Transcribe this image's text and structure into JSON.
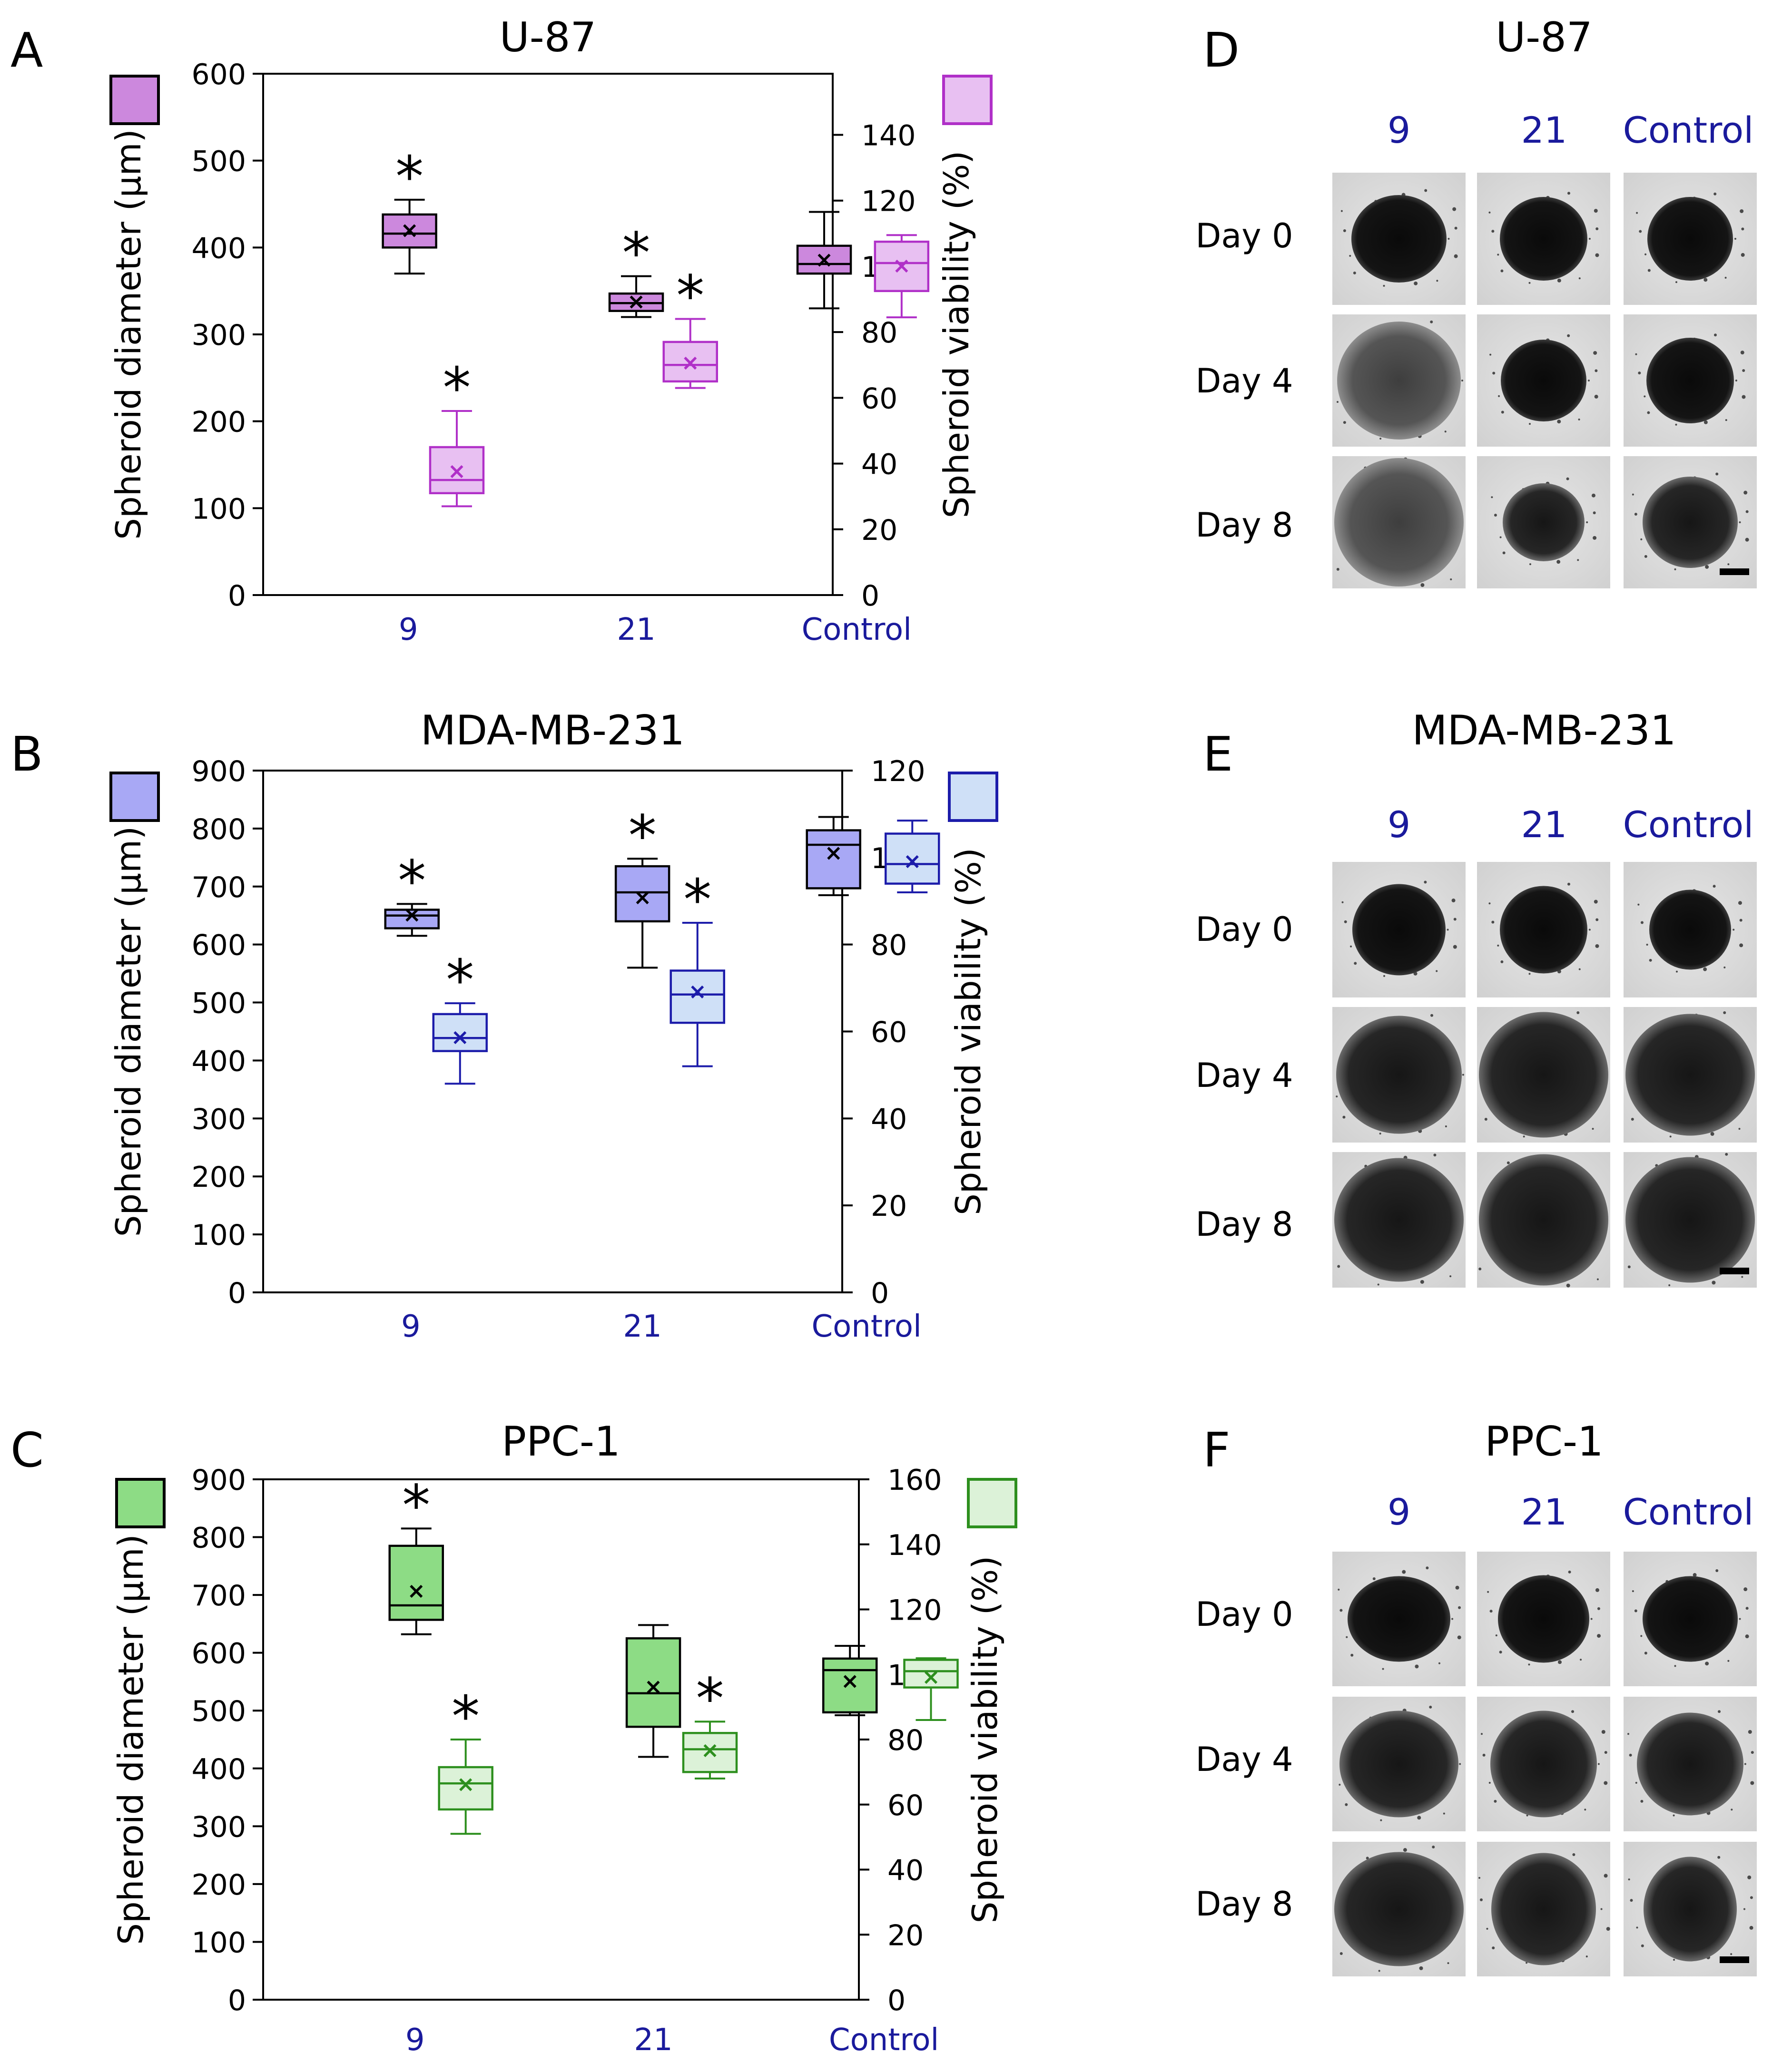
{
  "figure": {
    "panel_letters": [
      "A",
      "B",
      "C",
      "D",
      "E",
      "F"
    ],
    "axis_titles": {
      "left": "Spheroid diameter (µm)",
      "right": "Spheroid viability (%)"
    },
    "category_color": "#1a1a9c"
  },
  "chart_data": [
    {
      "type": "box",
      "panel": "A",
      "title": "U-87",
      "categories": [
        "9",
        "21",
        "Control"
      ],
      "ylabel": "Spheroid diameter (µm)",
      "y2label": "Spheroid viability (%)",
      "ylim": [
        0,
        600
      ],
      "yticks": [
        0,
        100,
        200,
        300,
        400,
        500,
        600
      ],
      "y2lim": [
        0,
        158.6
      ],
      "y2ticks": [
        0,
        20,
        40,
        60,
        80,
        100,
        120,
        140
      ],
      "colors": {
        "diameter_fill": "#cc88dd",
        "viability_fill": "#e8c0f2",
        "diameter_line": "#000000",
        "viability_line": "#b030c8"
      },
      "series": [
        {
          "name": "Spheroid diameter",
          "axis": "left",
          "boxes": [
            {
              "category": "9",
              "min": 370,
              "q1": 400,
              "median": 416,
              "q3": 438,
              "max": 455,
              "mean": 419,
              "sig": true
            },
            {
              "category": "21",
              "min": 320,
              "q1": 327,
              "median": 336,
              "q3": 347,
              "max": 367,
              "mean": 337,
              "sig": true
            },
            {
              "category": "Control",
              "min": 330,
              "q1": 370,
              "median": 381,
              "q3": 402,
              "max": 441,
              "mean": 385,
              "sig": false
            }
          ]
        },
        {
          "name": "Spheroid viability",
          "axis": "right",
          "boxes": [
            {
              "category": "9",
              "min": 27,
              "q1": 31,
              "median": 35,
              "q3": 45,
              "max": 56,
              "mean": 37.5,
              "sig": true
            },
            {
              "category": "21",
              "min": 63,
              "q1": 65,
              "median": 70,
              "q3": 77,
              "max": 84,
              "mean": 70.5,
              "sig": true
            },
            {
              "category": "Control",
              "min": 84.5,
              "q1": 92.5,
              "median": 101,
              "q3": 107.5,
              "max": 109.5,
              "mean": 100,
              "sig": false
            }
          ]
        }
      ]
    },
    {
      "type": "box",
      "panel": "B",
      "title": "MDA-MB-231",
      "categories": [
        "9",
        "21",
        "Control"
      ],
      "ylabel": "Spheroid diameter (µm)",
      "y2label": "Spheroid viability (%)",
      "ylim": [
        0,
        900
      ],
      "yticks": [
        0,
        100,
        200,
        300,
        400,
        500,
        600,
        700,
        800,
        900
      ],
      "y2lim": [
        0,
        120
      ],
      "y2ticks": [
        0,
        20,
        40,
        60,
        80,
        100,
        120
      ],
      "colors": {
        "diameter_fill": "#a8a8f5",
        "viability_fill": "#cfe0f7",
        "diameter_line": "#000000",
        "viability_line": "#1c1caa"
      },
      "series": [
        {
          "name": "Spheroid diameter",
          "axis": "left",
          "boxes": [
            {
              "category": "9",
              "min": 615,
              "q1": 628,
              "median": 650,
              "q3": 660,
              "max": 670,
              "mean": 650,
              "sig": true
            },
            {
              "category": "21",
              "min": 560,
              "q1": 640,
              "median": 690,
              "q3": 735,
              "max": 748,
              "mean": 680,
              "sig": true
            },
            {
              "category": "Control",
              "min": 685,
              "q1": 697,
              "median": 772,
              "q3": 797,
              "max": 820,
              "mean": 757,
              "sig": false
            }
          ]
        },
        {
          "name": "Spheroid viability",
          "axis": "right",
          "boxes": [
            {
              "category": "9",
              "min": 48,
              "q1": 55.5,
              "median": 58.5,
              "q3": 64,
              "max": 66.5,
              "mean": 58.5,
              "sig": true
            },
            {
              "category": "21",
              "min": 52,
              "q1": 62,
              "median": 68.5,
              "q3": 74,
              "max": 85,
              "mean": 69,
              "sig": true
            },
            {
              "category": "Control",
              "min": 92,
              "q1": 94,
              "median": 98.5,
              "q3": 105.5,
              "max": 108.5,
              "mean": 99,
              "sig": false
            }
          ]
        }
      ]
    },
    {
      "type": "box",
      "panel": "C",
      "title": "PPC-1",
      "categories": [
        "9",
        "21",
        "Control"
      ],
      "ylabel": "Spheroid diameter (µm)",
      "y2label": "Spheroid viability (%)",
      "ylim": [
        0,
        900
      ],
      "yticks": [
        0,
        100,
        200,
        300,
        400,
        500,
        600,
        700,
        800,
        900
      ],
      "y2lim": [
        0,
        160
      ],
      "y2ticks": [
        0,
        20,
        40,
        60,
        80,
        100,
        120,
        140,
        160
      ],
      "colors": {
        "diameter_fill": "#8ddc85",
        "viability_fill": "#dcf2d8",
        "diameter_line": "#000000",
        "viability_line": "#2d8f1e"
      },
      "series": [
        {
          "name": "Spheroid diameter",
          "axis": "left",
          "boxes": [
            {
              "category": "9",
              "min": 632,
              "q1": 657,
              "median": 682,
              "q3": 785,
              "max": 815,
              "mean": 706,
              "sig": true
            },
            {
              "category": "21",
              "min": 420,
              "q1": 472,
              "median": 530,
              "q3": 625,
              "max": 648,
              "mean": 540,
              "sig": false
            },
            {
              "category": "Control",
              "min": 492,
              "q1": 497,
              "median": 570,
              "q3": 590,
              "max": 612,
              "mean": 550,
              "sig": false
            }
          ]
        },
        {
          "name": "Spheroid viability",
          "axis": "right",
          "boxes": [
            {
              "category": "9",
              "min": 51,
              "q1": 58.5,
              "median": 66.5,
              "q3": 71.5,
              "max": 80,
              "mean": 66,
              "sig": true
            },
            {
              "category": "21",
              "min": 68,
              "q1": 70,
              "median": 77,
              "q3": 82,
              "max": 85.5,
              "mean": 76.5,
              "sig": true
            },
            {
              "category": "Control",
              "min": 86,
              "q1": 96,
              "median": 101,
              "q3": 104.5,
              "max": 105,
              "mean": 99,
              "sig": false
            }
          ]
        }
      ]
    }
  ],
  "micrographs": [
    {
      "panel": "D",
      "title": "U-87",
      "columns": [
        "9",
        "21",
        "Control"
      ],
      "rows": [
        "Day 0",
        "Day 4",
        "Day 8"
      ]
    },
    {
      "panel": "E",
      "title": "MDA-MB-231",
      "columns": [
        "9",
        "21",
        "Control"
      ],
      "rows": [
        "Day 0",
        "Day 4",
        "Day 8"
      ]
    },
    {
      "panel": "F",
      "title": "PPC-1",
      "columns": [
        "9",
        "21",
        "Control"
      ],
      "rows": [
        "Day 0",
        "Day 4",
        "Day 8"
      ]
    }
  ]
}
